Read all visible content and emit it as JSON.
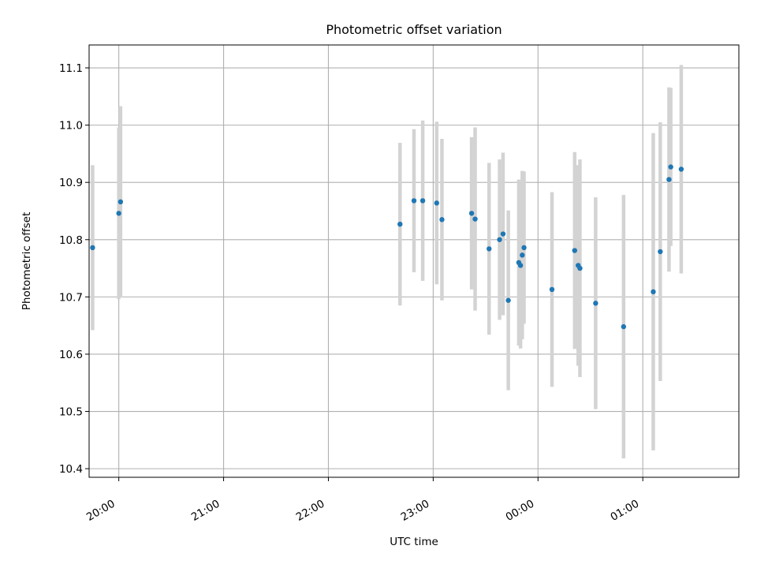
{
  "chart_data": {
    "type": "scatter",
    "title": "Photometric offset variation",
    "xlabel": "UTC time",
    "ylabel": "Photometric offset",
    "x_tick_labels": [
      "20:00",
      "21:00",
      "22:00",
      "23:00",
      "00:00",
      "01:00"
    ],
    "y_tick_labels": [
      "10.4",
      "10.5",
      "10.6",
      "10.7",
      "10.8",
      "10.9",
      "11.0",
      "11.1"
    ],
    "x_time_ticks": [
      "19:55",
      "20:55",
      "21:55",
      "22:55",
      "23:55",
      "00:55"
    ],
    "xlim": [
      "19:38",
      "01:50"
    ],
    "ylim": [
      10.385,
      11.14
    ],
    "grid": true,
    "error_bar_color": "#d3d3d3",
    "marker_color": "#1f77b4",
    "series": [
      {
        "points": [
          {
            "x": "19:40",
            "y": 10.786,
            "yerr": 0.144
          },
          {
            "x": "19:55",
            "y": 10.846,
            "yerr": 0.15
          },
          {
            "x": "19:56",
            "y": 10.866,
            "yerr": 0.167
          },
          {
            "x": "22:36",
            "y": 10.827,
            "yerr": 0.142
          },
          {
            "x": "22:44",
            "y": 10.868,
            "yerr": 0.125
          },
          {
            "x": "22:49",
            "y": 10.868,
            "yerr": 0.14
          },
          {
            "x": "22:57",
            "y": 10.864,
            "yerr": 0.142
          },
          {
            "x": "23:00",
            "y": 10.835,
            "yerr": 0.141
          },
          {
            "x": "23:17",
            "y": 10.846,
            "yerr": 0.133
          },
          {
            "x": "23:19",
            "y": 10.836,
            "yerr": 0.16
          },
          {
            "x": "23:27",
            "y": 10.784,
            "yerr": 0.15
          },
          {
            "x": "23:33",
            "y": 10.8,
            "yerr": 0.14
          },
          {
            "x": "23:35",
            "y": 10.81,
            "yerr": 0.142
          },
          {
            "x": "23:38",
            "y": 10.694,
            "yerr": 0.157
          },
          {
            "x": "23:44",
            "y": 10.76,
            "yerr": 0.145
          },
          {
            "x": "23:45",
            "y": 10.755,
            "yerr": 0.145
          },
          {
            "x": "23:46",
            "y": 10.773,
            "yerr": 0.147
          },
          {
            "x": "23:47",
            "y": 10.786,
            "yerr": 0.133
          },
          {
            "x": "00:03",
            "y": 10.713,
            "yerr": 0.17
          },
          {
            "x": "00:16",
            "y": 10.781,
            "yerr": 0.172
          },
          {
            "x": "00:18",
            "y": 10.755,
            "yerr": 0.175
          },
          {
            "x": "00:19",
            "y": 10.75,
            "yerr": 0.19
          },
          {
            "x": "00:28",
            "y": 10.689,
            "yerr": 0.185
          },
          {
            "x": "00:44",
            "y": 10.648,
            "yerr": 0.23
          },
          {
            "x": "01:01",
            "y": 10.709,
            "yerr": 0.277
          },
          {
            "x": "01:05",
            "y": 10.779,
            "yerr": 0.226
          },
          {
            "x": "01:10",
            "y": 10.905,
            "yerr": 0.161
          },
          {
            "x": "01:11",
            "y": 10.927,
            "yerr": 0.138
          },
          {
            "x": "01:17",
            "y": 10.923,
            "yerr": 0.182
          }
        ]
      }
    ]
  }
}
